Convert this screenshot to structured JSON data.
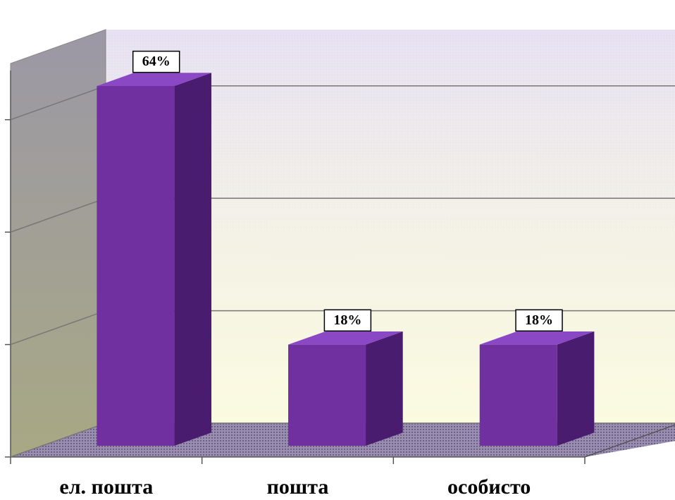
{
  "chart_data": {
    "type": "bar3d",
    "categories": [
      "ел. пошта",
      "пошта",
      "особисто"
    ],
    "values": [
      64,
      18,
      18
    ],
    "value_labels": [
      "64%",
      "18%",
      "18%"
    ],
    "color": "#7030a0",
    "ylim": [
      0,
      70
    ],
    "yticks": [
      0,
      20,
      40,
      60
    ],
    "grid": true
  }
}
